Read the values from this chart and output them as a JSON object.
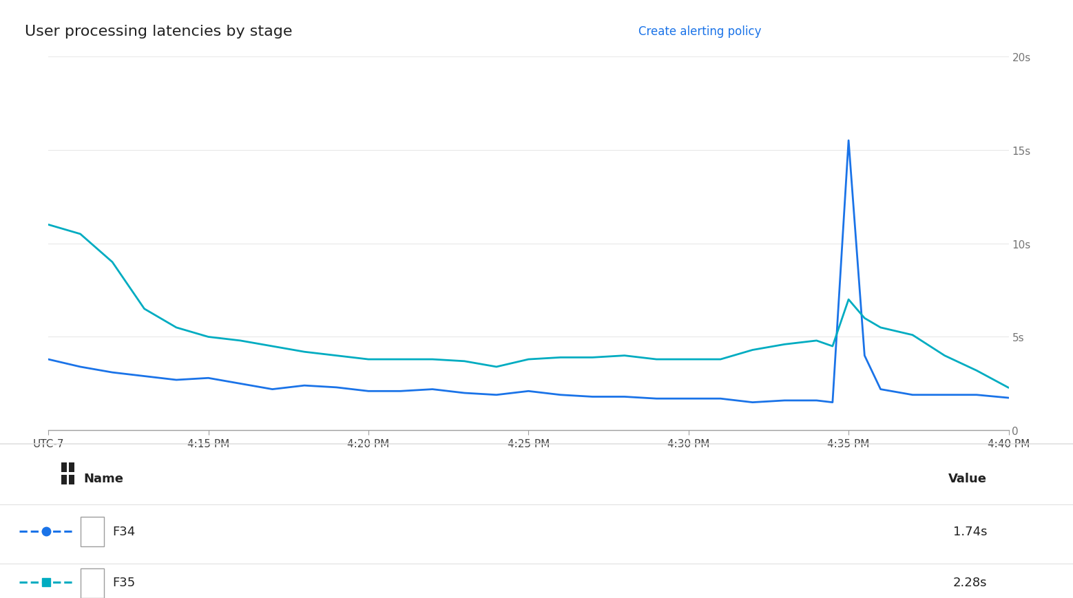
{
  "title": "User processing latencies by stage",
  "background_color": "#ffffff",
  "plot_bg_color": "#ffffff",
  "grid_color": "#e8e8e8",
  "axis_color": "#9e9e9e",
  "text_color": "#212121",
  "ylabel_color": "#757575",
  "ylim": [
    0,
    20
  ],
  "yticks": [
    0,
    5,
    10,
    15,
    20
  ],
  "ytick_labels": [
    "0",
    "5s",
    "10s",
    "15s",
    "20s"
  ],
  "xtick_labels": [
    "UTC-7",
    "4:15 PM",
    "4:20 PM",
    "4:25 PM",
    "4:30 PM",
    "4:35 PM",
    "4:40 PM"
  ],
  "xtick_positions": [
    0,
    5,
    10,
    15,
    20,
    25,
    30
  ],
  "xlim": [
    0,
    30
  ],
  "series": [
    {
      "name": "F34",
      "value": "1.74s",
      "color": "#1a73e8",
      "linewidth": 2.0,
      "x": [
        0,
        1,
        2,
        3,
        4,
        5,
        6,
        7,
        8,
        9,
        10,
        11,
        12,
        13,
        14,
        15,
        16,
        17,
        18,
        19,
        20,
        21,
        22,
        23,
        24,
        24.5,
        25,
        25.5,
        26,
        27,
        28,
        29,
        30
      ],
      "y": [
        3.8,
        3.4,
        3.1,
        2.9,
        2.7,
        2.8,
        2.5,
        2.2,
        2.4,
        2.3,
        2.1,
        2.1,
        2.2,
        2.0,
        1.9,
        2.1,
        1.9,
        1.8,
        1.8,
        1.7,
        1.7,
        1.7,
        1.5,
        1.6,
        1.6,
        1.5,
        15.5,
        4.0,
        2.2,
        1.9,
        1.9,
        1.9,
        1.74
      ]
    },
    {
      "name": "F35",
      "value": "2.28s",
      "color": "#00acc1",
      "linewidth": 2.0,
      "x": [
        0,
        1,
        2,
        3,
        4,
        5,
        6,
        7,
        8,
        9,
        10,
        11,
        12,
        13,
        14,
        15,
        16,
        17,
        18,
        19,
        20,
        21,
        22,
        23,
        24,
        24.5,
        25,
        25.5,
        26,
        27,
        28,
        29,
        30
      ],
      "y": [
        11.0,
        10.5,
        9.0,
        6.5,
        5.5,
        5.0,
        4.8,
        4.5,
        4.2,
        4.0,
        3.8,
        3.8,
        3.8,
        3.7,
        3.4,
        3.8,
        3.9,
        3.9,
        4.0,
        3.8,
        3.8,
        3.8,
        4.3,
        4.6,
        4.8,
        4.5,
        7.0,
        6.0,
        5.5,
        5.1,
        4.0,
        3.2,
        2.28
      ]
    }
  ],
  "legend": {
    "name_label": "Name",
    "value_label": "Value"
  },
  "figsize": [
    15.58,
    8.7
  ],
  "dpi": 100
}
